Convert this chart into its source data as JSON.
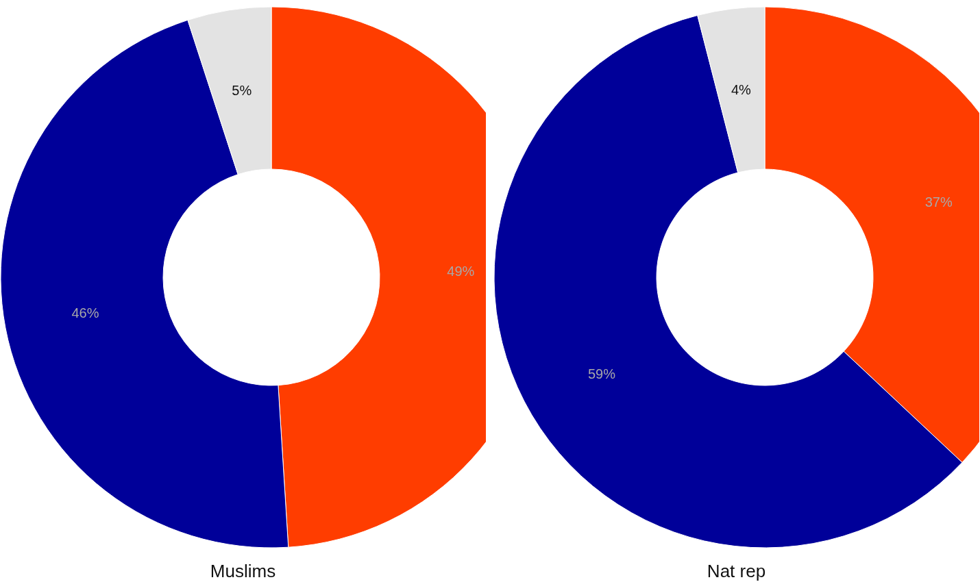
{
  "chart_data": [
    {
      "type": "donut",
      "title": "Muslims",
      "categories": [
        null,
        null,
        null
      ],
      "values": [
        49,
        46,
        5
      ],
      "colors": [
        "#ff3d00",
        "#000099",
        "#e3e3e3"
      ],
      "value_labels": [
        "49%",
        "46%",
        "5%"
      ]
    },
    {
      "type": "donut",
      "title": "Nat rep",
      "categories": [
        null,
        null,
        null
      ],
      "values": [
        37,
        59,
        4
      ],
      "colors": [
        "#ff3d00",
        "#000099",
        "#e3e3e3"
      ],
      "value_labels": [
        "37%",
        "59%",
        "4%"
      ]
    }
  ]
}
